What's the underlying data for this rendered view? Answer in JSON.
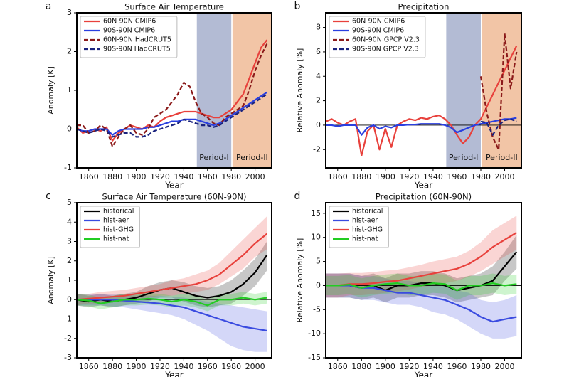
{
  "chart_data": [
    {
      "type": "line",
      "letter": "a",
      "title": "Surface Air Temperature",
      "xlabel": "Year",
      "ylabel": "Anomaly  [K]",
      "xlim": [
        1850,
        2014
      ],
      "xticks": [
        1860,
        1880,
        1900,
        1920,
        1940,
        1960,
        1980,
        2000
      ],
      "ylim": [
        -1,
        3
      ],
      "yticks": [
        -1,
        0,
        1,
        2,
        3
      ],
      "hline": 0,
      "legend": "upper left",
      "spans": [
        {
          "label": "Period-I",
          "start": 1951,
          "end": 1980,
          "color": "#b3bbd4"
        },
        {
          "label": "Period-II",
          "start": 1981,
          "end": 2014,
          "color": "#f2c5a6"
        }
      ],
      "x": [
        1850,
        1855,
        1860,
        1865,
        1870,
        1875,
        1880,
        1885,
        1890,
        1895,
        1900,
        1905,
        1910,
        1915,
        1920,
        1925,
        1930,
        1935,
        1940,
        1945,
        1950,
        1955,
        1960,
        1965,
        1970,
        1975,
        1980,
        1985,
        1990,
        1995,
        2000,
        2005,
        2010
      ],
      "series": [
        {
          "name": "60N-90N CMIP6",
          "color": "#e8413c",
          "style": "solid",
          "values": [
            0.05,
            -0.1,
            -0.05,
            0,
            -0.05,
            0.05,
            -0.3,
            -0.1,
            0,
            0.1,
            0.05,
            0,
            0.1,
            0.05,
            0.2,
            0.3,
            0.35,
            0.4,
            0.45,
            0.45,
            0.45,
            0.4,
            0.35,
            0.3,
            0.3,
            0.4,
            0.5,
            0.7,
            0.9,
            1.3,
            1.7,
            2.1,
            2.3
          ]
        },
        {
          "name": "90S-90N CMIP6",
          "color": "#2a3fe0",
          "style": "solid",
          "values": [
            0,
            -0.05,
            -0.05,
            0,
            0,
            0,
            -0.15,
            -0.05,
            0,
            0,
            0,
            0,
            0.05,
            0.05,
            0.1,
            0.15,
            0.2,
            0.2,
            0.25,
            0.25,
            0.25,
            0.2,
            0.15,
            0.1,
            0.15,
            0.25,
            0.35,
            0.45,
            0.55,
            0.65,
            0.75,
            0.85,
            0.95
          ]
        },
        {
          "name": "60N-90N HadCRUT5",
          "color": "#8b1a1a",
          "style": "dashed",
          "values": [
            0.1,
            0.1,
            -0.1,
            -0.05,
            0.1,
            0,
            -0.45,
            -0.2,
            0,
            0.1,
            -0.1,
            -0.15,
            0,
            0.3,
            0.4,
            0.5,
            0.7,
            0.9,
            1.2,
            1.1,
            0.7,
            0.4,
            0.3,
            0.15,
            0.1,
            0.3,
            0.4,
            0.5,
            0.6,
            1.0,
            1.5,
            1.9,
            2.2
          ]
        },
        {
          "name": "90S-90N HadCRUT5",
          "color": "#1a237e",
          "style": "dashed",
          "values": [
            0,
            -0.05,
            -0.1,
            -0.05,
            0,
            -0.05,
            -0.2,
            -0.15,
            -0.1,
            -0.1,
            -0.2,
            -0.2,
            -0.15,
            -0.05,
            0,
            0.05,
            0.1,
            0.15,
            0.25,
            0.2,
            0.15,
            0.1,
            0.1,
            0.05,
            0.1,
            0.2,
            0.3,
            0.4,
            0.5,
            0.6,
            0.7,
            0.8,
            0.9
          ]
        }
      ]
    },
    {
      "type": "line",
      "letter": "b",
      "title": "Precipitation",
      "xlabel": "Year",
      "ylabel": "Relative Anomaly  [%]",
      "xlim": [
        1850,
        2014
      ],
      "xticks": [
        1860,
        1880,
        1900,
        1920,
        1940,
        1960,
        1980,
        2000
      ],
      "ylim": [
        -3.5,
        9.2
      ],
      "yticks": [
        -2,
        0,
        2,
        4,
        6,
        8
      ],
      "hline": 0,
      "legend": "upper left",
      "spans": [
        {
          "label": "Period-I",
          "start": 1951,
          "end": 1980,
          "color": "#b3bbd4"
        },
        {
          "label": "Period-II",
          "start": 1981,
          "end": 2014,
          "color": "#f2c5a6"
        }
      ],
      "x": [
        1850,
        1855,
        1860,
        1865,
        1870,
        1875,
        1880,
        1885,
        1890,
        1895,
        1900,
        1905,
        1910,
        1915,
        1920,
        1925,
        1930,
        1935,
        1940,
        1945,
        1950,
        1955,
        1960,
        1965,
        1970,
        1975,
        1980,
        1985,
        1990,
        1995,
        2000,
        2005,
        2010
      ],
      "series": [
        {
          "name": "60N-90N CMIP6",
          "color": "#e8413c",
          "style": "solid",
          "values": [
            0.3,
            0.5,
            0.2,
            0,
            0.3,
            0.5,
            -2.5,
            -0.5,
            0,
            -2,
            -0.3,
            -1.8,
            0,
            0.3,
            0.5,
            0.4,
            0.6,
            0.5,
            0.7,
            0.8,
            0.5,
            0,
            -0.8,
            -1.5,
            -1,
            0,
            0.5,
            1.5,
            2.5,
            3.5,
            4.5,
            5.5,
            6.5
          ]
        },
        {
          "name": "90S-90N CMIP6",
          "color": "#2a3fe0",
          "style": "solid",
          "values": [
            0,
            0,
            -0.1,
            0,
            0,
            0,
            -0.8,
            -0.2,
            0,
            -0.3,
            -0.1,
            -0.2,
            0,
            0,
            0.05,
            0.05,
            0.1,
            0.1,
            0.1,
            0.1,
            0,
            -0.2,
            -0.6,
            -0.4,
            -0.2,
            0,
            0.1,
            0.2,
            0.3,
            0.4,
            0.5,
            0.5,
            0.6
          ]
        },
        {
          "name": "60N-90N GPCP V2.3",
          "color": "#8b1a1a",
          "style": "dashed",
          "values": [
            null,
            null,
            null,
            null,
            null,
            null,
            null,
            null,
            null,
            null,
            null,
            null,
            null,
            null,
            null,
            null,
            null,
            null,
            null,
            null,
            null,
            null,
            null,
            null,
            null,
            null,
            4,
            1,
            -1,
            -2,
            7.5,
            3,
            6
          ]
        },
        {
          "name": "90S-90N GPCP V2.3",
          "color": "#1a237e",
          "style": "dashed",
          "values": [
            null,
            null,
            null,
            null,
            null,
            null,
            null,
            null,
            null,
            null,
            null,
            null,
            null,
            null,
            null,
            null,
            null,
            null,
            null,
            null,
            null,
            null,
            null,
            null,
            null,
            null,
            0.3,
            0.2,
            -0.8,
            0,
            0.4,
            0.5,
            0.3
          ]
        }
      ]
    },
    {
      "type": "line",
      "letter": "c",
      "title": "Surface Air Temperature    (60N-90N)",
      "xlabel": "Year",
      "ylabel": "Anomaly  [K]",
      "xlim": [
        1850,
        2014
      ],
      "xticks": [
        1860,
        1880,
        1900,
        1920,
        1940,
        1960,
        1980,
        2000
      ],
      "ylim": [
        -3,
        5
      ],
      "yticks": [
        -3,
        -2,
        -1,
        0,
        1,
        2,
        3,
        4,
        5
      ],
      "hline": 0,
      "legend": "upper left",
      "x": [
        1850,
        1860,
        1870,
        1880,
        1890,
        1900,
        1910,
        1920,
        1930,
        1940,
        1950,
        1960,
        1970,
        1980,
        1990,
        2000,
        2010
      ],
      "series": [
        {
          "name": "historical",
          "color": "#000000",
          "style": "solid",
          "values": [
            0,
            -0.1,
            0,
            -0.1,
            0,
            0.1,
            0.3,
            0.5,
            0.6,
            0.4,
            0.2,
            0.1,
            0.2,
            0.4,
            0.8,
            1.4,
            2.3
          ],
          "lower": [
            -0.3,
            -0.4,
            -0.3,
            -0.4,
            -0.3,
            -0.2,
            -0.1,
            0.1,
            0.1,
            -0.1,
            -0.3,
            -0.4,
            -0.3,
            -0.2,
            0.2,
            0.7,
            1.5
          ],
          "upper": [
            0.3,
            0.2,
            0.3,
            0.2,
            0.3,
            0.4,
            0.7,
            0.9,
            1.0,
            0.9,
            0.7,
            0.6,
            0.7,
            1.0,
            1.5,
            2.1,
            3.0
          ]
        },
        {
          "name": "hist-aer",
          "color": "#3a4be0",
          "style": "solid",
          "values": [
            0,
            0,
            0,
            0,
            -0.05,
            -0.1,
            -0.15,
            -0.2,
            -0.3,
            -0.4,
            -0.6,
            -0.8,
            -1.0,
            -1.2,
            -1.4,
            -1.5,
            -1.6
          ],
          "lower": [
            -0.3,
            -0.3,
            -0.3,
            -0.35,
            -0.4,
            -0.5,
            -0.6,
            -0.7,
            -0.8,
            -1,
            -1.3,
            -1.6,
            -2,
            -2.4,
            -2.6,
            -2.7,
            -2.7
          ],
          "upper": [
            0.3,
            0.3,
            0.3,
            0.3,
            0.25,
            0.2,
            0.2,
            0.2,
            0.15,
            0.1,
            0,
            -0.1,
            -0.2,
            -0.3,
            -0.4,
            -0.5,
            -0.6
          ]
        },
        {
          "name": "hist-GHG",
          "color": "#e8413c",
          "style": "solid",
          "values": [
            0,
            0.05,
            0.1,
            0.15,
            0.2,
            0.3,
            0.4,
            0.5,
            0.6,
            0.7,
            0.8,
            1.0,
            1.3,
            1.8,
            2.3,
            2.9,
            3.4
          ],
          "lower": [
            -0.3,
            -0.2,
            -0.2,
            -0.15,
            -0.1,
            0,
            0.1,
            0.2,
            0.2,
            0.3,
            0.4,
            0.5,
            0.8,
            1.2,
            1.6,
            2.2,
            2.6
          ],
          "upper": [
            0.3,
            0.3,
            0.4,
            0.45,
            0.5,
            0.6,
            0.7,
            0.8,
            1,
            1.1,
            1.3,
            1.5,
            1.9,
            2.5,
            3.1,
            3.7,
            4.3
          ]
        },
        {
          "name": "hist-nat",
          "color": "#22cc22",
          "style": "solid",
          "values": [
            0,
            -0.05,
            -0.2,
            -0.1,
            0,
            0,
            0.05,
            0,
            -0.1,
            0,
            -0.1,
            -0.3,
            0,
            0,
            0.1,
            0,
            0.1
          ],
          "lower": [
            -0.3,
            -0.35,
            -0.5,
            -0.4,
            -0.3,
            -0.3,
            -0.25,
            -0.3,
            -0.4,
            -0.3,
            -0.4,
            -0.6,
            -0.3,
            -0.3,
            -0.2,
            -0.3,
            -0.2
          ],
          "upper": [
            0.3,
            0.25,
            0.1,
            0.2,
            0.3,
            0.3,
            0.35,
            0.3,
            0.2,
            0.3,
            0.2,
            0,
            0.3,
            0.3,
            0.4,
            0.3,
            0.4
          ]
        }
      ]
    },
    {
      "type": "line",
      "letter": "d",
      "title": "Precipitation    (60N-90N)",
      "xlabel": "Year",
      "ylabel": "Relative Anomaly  [%]",
      "xlim": [
        1850,
        2014
      ],
      "xticks": [
        1860,
        1880,
        1900,
        1920,
        1940,
        1960,
        1980,
        2000
      ],
      "ylim": [
        -15,
        17.2
      ],
      "yticks": [
        -15,
        -10,
        -5,
        0,
        5,
        10,
        15
      ],
      "hline": 0,
      "legend": "upper left",
      "x": [
        1850,
        1860,
        1870,
        1880,
        1890,
        1900,
        1910,
        1920,
        1930,
        1940,
        1950,
        1960,
        1970,
        1980,
        1990,
        2000,
        2010
      ],
      "series": [
        {
          "name": "historical",
          "color": "#000000",
          "style": "solid",
          "values": [
            0,
            0,
            0,
            -0.5,
            0,
            -1,
            0,
            0,
            0.5,
            0.5,
            0,
            -1,
            -0.5,
            0,
            1,
            4,
            7
          ],
          "lower": [
            -2.5,
            -2.5,
            -2.5,
            -3,
            -2.5,
            -3.5,
            -2.5,
            -2.5,
            -2,
            -2,
            -2.5,
            -3.5,
            -3,
            -2.5,
            -2,
            1,
            3.5
          ],
          "upper": [
            2.5,
            2.5,
            2.5,
            2,
            2.5,
            1.5,
            2.5,
            2.5,
            3,
            3,
            2.5,
            1.5,
            2,
            2.5,
            4,
            7,
            10.5
          ]
        },
        {
          "name": "hist-aer",
          "color": "#3a4be0",
          "style": "solid",
          "values": [
            0,
            0,
            0,
            -0.5,
            -0.5,
            -1,
            -1.5,
            -1.5,
            -2,
            -2.5,
            -3,
            -4,
            -5,
            -6.5,
            -7.5,
            -7,
            -6.5
          ],
          "lower": [
            -2.5,
            -2.5,
            -2.5,
            -3,
            -3,
            -3.5,
            -4,
            -4,
            -4.5,
            -5.5,
            -6,
            -7,
            -8.5,
            -10,
            -11,
            -11,
            -10.5
          ],
          "upper": [
            2.5,
            2.5,
            2.5,
            2,
            2,
            1.5,
            1,
            1,
            0.5,
            0.5,
            0,
            -1,
            -1.5,
            -3,
            -3.5,
            -3,
            -2
          ]
        },
        {
          "name": "hist-GHG",
          "color": "#e8413c",
          "style": "solid",
          "values": [
            0,
            0,
            0.3,
            0.3,
            0.5,
            0.8,
            1,
            1.5,
            2,
            2.5,
            3,
            3.5,
            4.5,
            6,
            8,
            9.5,
            11
          ],
          "lower": [
            -2.5,
            -2.5,
            -2,
            -2,
            -1.8,
            -1.5,
            -1.2,
            -0.8,
            -0.3,
            0,
            0.5,
            1,
            1.8,
            3,
            4.5,
            6,
            7.5
          ],
          "upper": [
            2.5,
            2.5,
            2.6,
            2.6,
            2.8,
            3.1,
            3.3,
            3.8,
            4.3,
            5,
            5.5,
            6,
            7.2,
            9,
            11.5,
            13,
            14.5
          ]
        },
        {
          "name": "hist-nat",
          "color": "#22cc22",
          "style": "solid",
          "values": [
            0,
            0,
            0.2,
            -0.5,
            0,
            0.3,
            0.5,
            0,
            0,
            0.5,
            0.3,
            -1,
            0,
            0,
            0.5,
            0,
            0.3
          ],
          "lower": [
            -2,
            -2,
            -1.8,
            -2.5,
            -2,
            -1.7,
            -1.5,
            -2,
            -2,
            -1.5,
            -1.7,
            -3,
            -2,
            -2,
            -1.5,
            -2,
            -1.7
          ],
          "upper": [
            2,
            2,
            2.2,
            1.5,
            2,
            2.3,
            2.5,
            2,
            2,
            2.5,
            2.3,
            1,
            2,
            2,
            2.5,
            2,
            2.3
          ]
        }
      ]
    }
  ]
}
